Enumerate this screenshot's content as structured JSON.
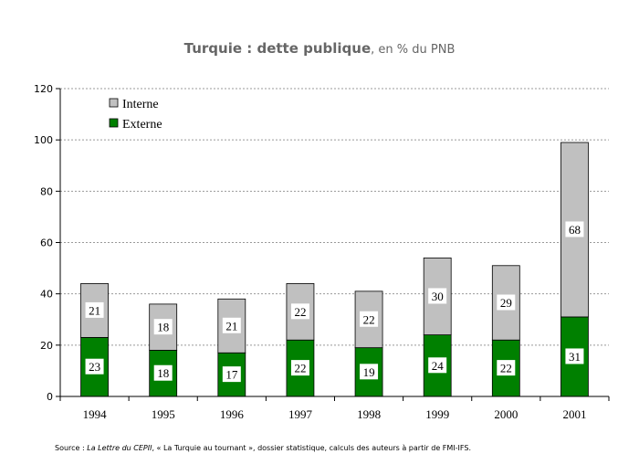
{
  "title": {
    "main": "Turquie : dette publique",
    "rest": ", en % du PNB"
  },
  "source": {
    "prefix": "Source : ",
    "publication": "La Lettre du CEPII",
    "rest": ", « La Turquie au  tournant », dossier statistique, calculs des auteurs à partir de FMI-IFS."
  },
  "chart_data": {
    "type": "bar",
    "stacked": true,
    "title": "Turquie : dette publique, en % du PNB",
    "categories": [
      "1994",
      "1995",
      "1996",
      "1997",
      "1998",
      "1999",
      "2000",
      "2001"
    ],
    "series": [
      {
        "name": "Externe",
        "color": "#008000",
        "values": [
          23,
          18,
          17,
          22,
          19,
          24,
          22,
          31
        ],
        "labels": [
          "23",
          "18",
          "17",
          "22",
          "19",
          "24",
          "22",
          "31"
        ]
      },
      {
        "name": "Interne",
        "color": "#c0c0c0",
        "values": [
          21,
          18,
          21,
          22,
          22,
          30,
          29,
          68
        ],
        "labels": [
          "21",
          "18",
          "21",
          "22",
          "22",
          "30",
          "29",
          "68"
        ]
      }
    ],
    "legend_order": [
      "Interne",
      "Externe"
    ],
    "legend_position": "top-left",
    "ylim": [
      0,
      120
    ],
    "yticks": [
      "0",
      "20",
      "40",
      "60",
      "80",
      "100",
      "120"
    ],
    "grid": true,
    "grid_style": "dashed"
  }
}
